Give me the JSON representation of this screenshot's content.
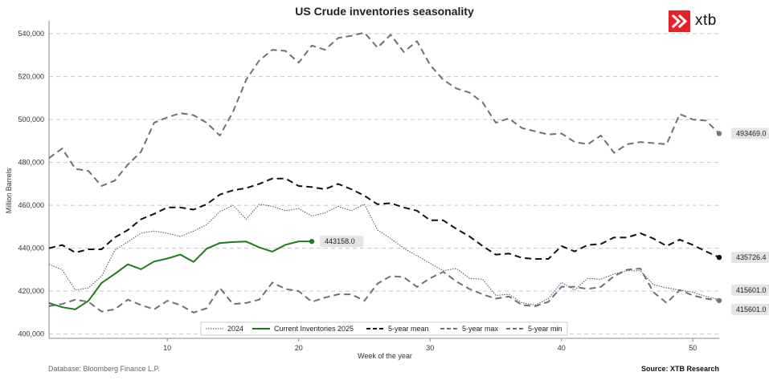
{
  "chart_data": {
    "type": "line",
    "title": "US Crude inventories seasonality",
    "xlabel": "Week of the year",
    "ylabel": "Million Barrels",
    "xlim": [
      1,
      52
    ],
    "ylim": [
      398000,
      546000
    ],
    "xticks": [
      10,
      20,
      30,
      40,
      50
    ],
    "yticks": [
      400000,
      420000,
      440000,
      460000,
      480000,
      500000,
      520000,
      540000
    ],
    "ytick_labels": [
      "400,000",
      "420,000",
      "440,000",
      "460,000",
      "480,000",
      "500,000",
      "520,000",
      "540,000"
    ],
    "grid": "horizontal dashed",
    "legend_position": "bottom-center",
    "series": [
      {
        "name": "2024",
        "style": "dotted",
        "color": "#4a4a8a",
        "x": [
          1,
          2,
          3,
          4,
          5,
          6,
          7,
          8,
          9,
          10,
          11,
          12,
          13,
          14,
          15,
          16,
          17,
          18,
          19,
          20,
          21,
          22,
          23,
          24,
          25,
          26,
          27,
          28,
          29,
          30,
          31,
          32,
          33,
          34,
          35,
          36,
          37,
          38,
          39,
          40,
          41,
          42,
          43,
          44,
          45,
          46,
          47,
          48,
          49,
          50,
          51,
          52
        ],
        "y": [
          432500,
          430000,
          420500,
          421500,
          427000,
          439000,
          443000,
          447000,
          448000,
          447000,
          445500,
          448000,
          451000,
          457000,
          460000,
          453500,
          460500,
          459500,
          457500,
          458500,
          455000,
          456500,
          459500,
          457500,
          460500,
          448500,
          444500,
          440000,
          436500,
          433000,
          429500,
          430500,
          426000,
          425500,
          418000,
          418500,
          414500,
          413500,
          416500,
          424000,
          420500,
          426000,
          425500,
          428000,
          429500,
          429500,
          423000,
          421500,
          420500,
          419500,
          417500,
          416000
        ]
      },
      {
        "name": "Current Inventories 2025",
        "style": "solid",
        "color": "#1e7a1e",
        "x": [
          1,
          2,
          3,
          4,
          5,
          6,
          7,
          8,
          9,
          10,
          11,
          12,
          13,
          14,
          15,
          16,
          17,
          18,
          19,
          20,
          21
        ],
        "y": [
          414500,
          412500,
          411500,
          415500,
          423800,
          428000,
          432500,
          430200,
          433800,
          435200,
          437000,
          433600,
          439800,
          442400,
          442900,
          443100,
          440400,
          438400,
          441600,
          443200,
          443158
        ],
        "end_label": "443158.0"
      },
      {
        "name": "5-year mean",
        "style": "dashed",
        "color": "#111111",
        "x": [
          1,
          2,
          3,
          4,
          5,
          6,
          7,
          8,
          9,
          10,
          11,
          12,
          13,
          14,
          15,
          16,
          17,
          18,
          19,
          20,
          21,
          22,
          23,
          24,
          25,
          26,
          27,
          28,
          29,
          30,
          31,
          32,
          33,
          34,
          35,
          36,
          37,
          38,
          39,
          40,
          41,
          42,
          43,
          44,
          45,
          46,
          47,
          48,
          49,
          50,
          51,
          52
        ],
        "y": [
          440000,
          441500,
          438000,
          439500,
          439500,
          445000,
          448500,
          453500,
          456000,
          459000,
          459000,
          458000,
          460500,
          465000,
          467000,
          468000,
          470000,
          472500,
          472500,
          469000,
          468500,
          467500,
          470000,
          467500,
          464500,
          460500,
          461000,
          459000,
          457500,
          453000,
          453000,
          449000,
          445500,
          441000,
          437000,
          437500,
          435500,
          435000,
          435000,
          441000,
          438500,
          441500,
          442000,
          445000,
          445000,
          447000,
          444500,
          441000,
          444000,
          441500,
          438500,
          435726
        ]
      },
      {
        "name": "5-year max",
        "style": "dashed",
        "color": "#707070",
        "x": [
          1,
          2,
          3,
          4,
          5,
          6,
          7,
          8,
          9,
          10,
          11,
          12,
          13,
          14,
          15,
          16,
          17,
          18,
          19,
          20,
          21,
          22,
          23,
          24,
          25,
          26,
          27,
          28,
          29,
          30,
          31,
          32,
          33,
          34,
          35,
          36,
          37,
          38,
          39,
          40,
          41,
          42,
          43,
          44,
          45,
          46,
          47,
          48,
          49,
          50,
          51,
          52
        ],
        "y": [
          482000,
          486500,
          477000,
          476000,
          469000,
          471500,
          479000,
          485000,
          498500,
          501000,
          503000,
          502000,
          498500,
          492500,
          503500,
          518500,
          527500,
          532500,
          532000,
          526500,
          534500,
          532500,
          538000,
          539000,
          540500,
          533500,
          539500,
          531500,
          536500,
          525500,
          518500,
          514500,
          512500,
          508000,
          498500,
          500500,
          496000,
          494500,
          493000,
          493500,
          489500,
          488500,
          492500,
          484500,
          488500,
          489500,
          489000,
          488500,
          502500,
          500000,
          499500,
          493469
        ],
        "end_label": "493469.0"
      },
      {
        "name": "5-year min",
        "style": "dashed",
        "color": "#707070",
        "x": [
          1,
          2,
          3,
          4,
          5,
          6,
          7,
          8,
          9,
          10,
          11,
          12,
          13,
          14,
          15,
          16,
          17,
          18,
          19,
          20,
          21,
          22,
          23,
          24,
          25,
          26,
          27,
          28,
          29,
          30,
          31,
          32,
          33,
          34,
          35,
          36,
          37,
          38,
          39,
          40,
          41,
          42,
          43,
          44,
          45,
          46,
          47,
          48,
          49,
          50,
          51,
          52
        ],
        "y": [
          413000,
          414000,
          416000,
          415000,
          410500,
          411500,
          416000,
          413500,
          411500,
          415500,
          413500,
          410000,
          412000,
          421500,
          414000,
          414500,
          416000,
          424000,
          421000,
          420000,
          415000,
          417000,
          418500,
          418500,
          415500,
          423500,
          427000,
          426500,
          422000,
          426000,
          429000,
          424500,
          421000,
          418500,
          416500,
          417500,
          413500,
          413000,
          415000,
          422000,
          422000,
          421000,
          422000,
          427000,
          430000,
          430500,
          419500,
          414500,
          420500,
          418000,
          416500,
          415601
        ],
        "end_label": "415601.0"
      }
    ],
    "extra_labels": [
      "435726.4",
      "415601.0"
    ]
  },
  "footer": {
    "source_left": "Database: Bloomberg Finance L.P.",
    "source_right": "Source: XTB Research"
  },
  "logo": {
    "text": "xtb",
    "color": "#e8202a"
  }
}
